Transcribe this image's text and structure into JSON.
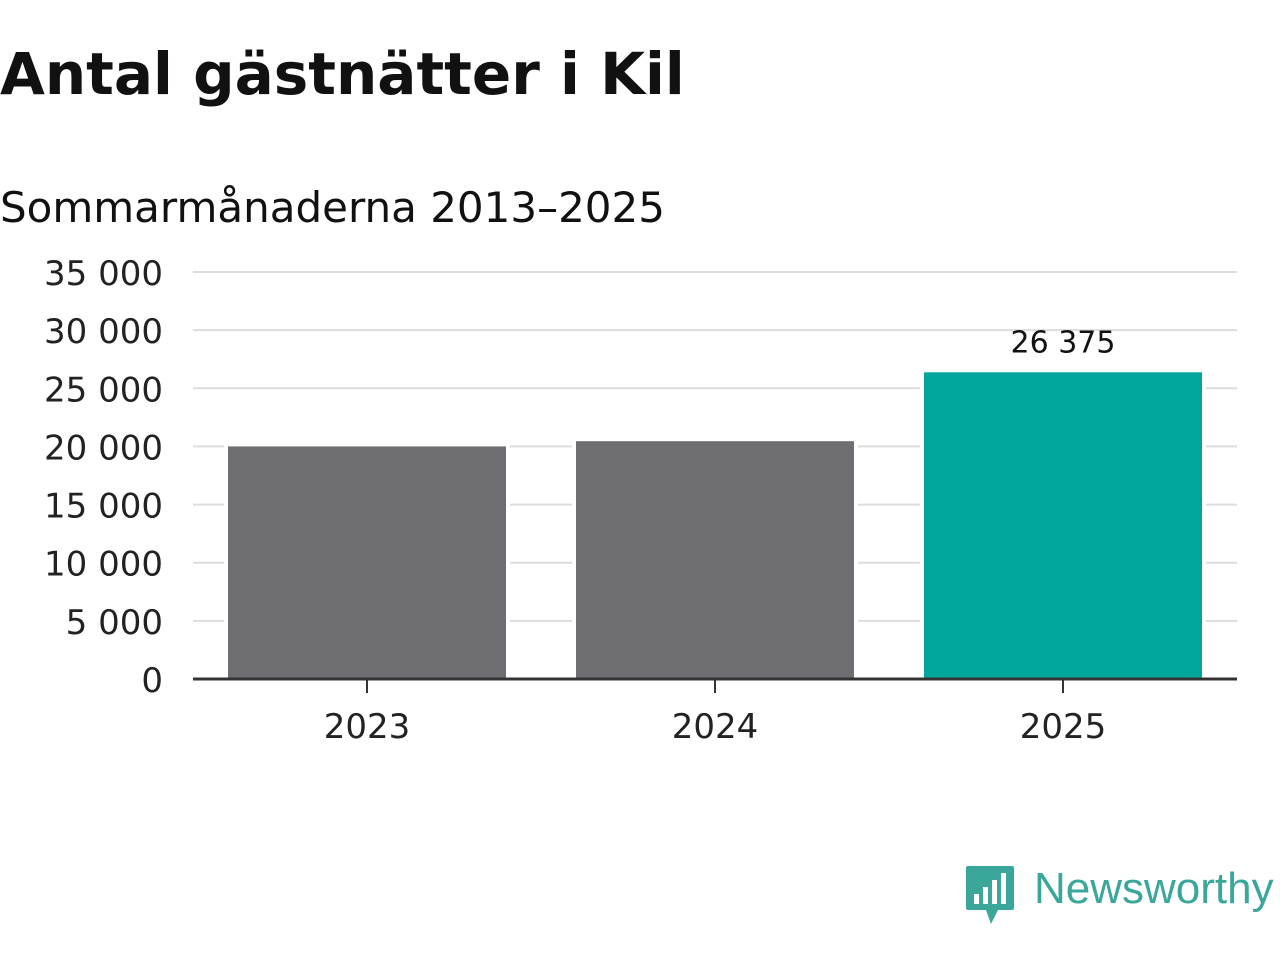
{
  "chart_data": {
    "type": "bar",
    "title": "Antal gästnätter i Kil",
    "subtitle": "Sommarmånaderna 2013–2025",
    "categories": [
      "2023",
      "2024",
      "2025"
    ],
    "values": [
      20000,
      20450,
      26375
    ],
    "value_labels": [
      "",
      "",
      "26 375"
    ],
    "ylim": [
      0,
      35000
    ],
    "yticks": [
      0,
      5000,
      10000,
      15000,
      20000,
      25000,
      30000,
      35000
    ],
    "ytick_labels": [
      "0",
      "5 000",
      "10 000",
      "15 000",
      "20 000",
      "25 000",
      "30 000",
      "35 000"
    ],
    "grid": true,
    "colors": {
      "default_bar": "#6e6d72",
      "highlight_bar": "#00a59b",
      "grid": "#dddddd",
      "axis": "#333333",
      "text": "#111111"
    },
    "highlight_index": 2
  },
  "brand": {
    "name": "Newsworthy",
    "icon": "newsworthy-logo-icon",
    "color": "#3aa79a"
  }
}
